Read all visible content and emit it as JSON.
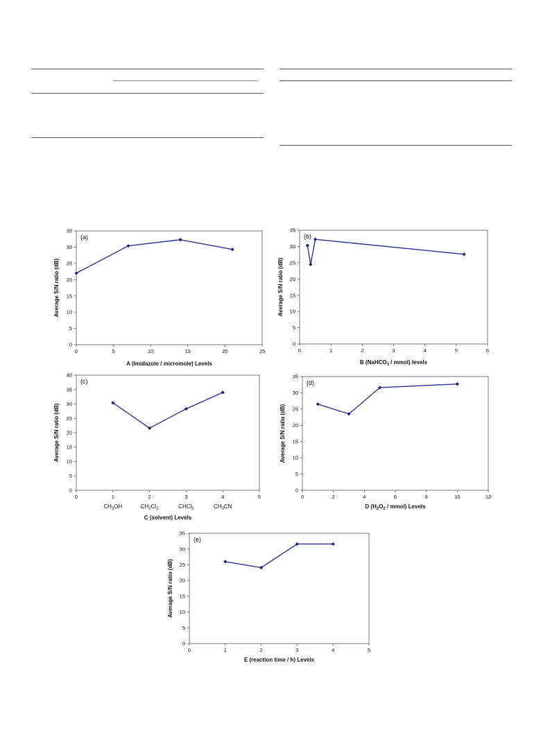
{
  "chart_data": [
    {
      "type": "line",
      "panel_label": "(a)",
      "xlabel": "A (Imidazole / micromole) Levels",
      "ylabel": "Average S/N ratio (dB)",
      "xlim": [
        0,
        25
      ],
      "ylim": [
        0,
        35
      ],
      "xticks": [
        "0",
        "5",
        "10",
        "15",
        "20",
        "25"
      ],
      "yticks": [
        "0",
        "5",
        "10",
        "15",
        "20",
        "25",
        "30",
        "35"
      ],
      "series": [
        {
          "x": [
            0,
            7,
            14,
            21
          ],
          "y": [
            22.0,
            30.4,
            32.3,
            29.3
          ]
        }
      ],
      "color": "#2e3192"
    },
    {
      "type": "line",
      "panel_label": "(b)",
      "xlabel": "B (NaHCO3 / mmol) levels",
      "ylabel": "Average S/N ratio (dB)",
      "xlim": [
        0,
        6
      ],
      "ylim": [
        0,
        35
      ],
      "xticks": [
        "0",
        "1",
        "2",
        "3",
        "4",
        "5",
        "6"
      ],
      "yticks": [
        "0",
        "5",
        "10",
        "15",
        "20",
        "25",
        "30",
        "35"
      ],
      "series": [
        {
          "x": [
            0.25,
            0.35,
            0.5,
            5.25
          ],
          "y": [
            30.3,
            24.5,
            32.2,
            27.6
          ]
        }
      ],
      "color": "#2e3192"
    },
    {
      "type": "line",
      "panel_label": "(c)",
      "xlabel": "C (solvent) Levels",
      "ylabel": "Average S/N ratio (dB)",
      "xlim": [
        0,
        5
      ],
      "ylim": [
        0,
        40
      ],
      "xticks": [
        "0",
        "1",
        "2",
        "3",
        "4",
        "5"
      ],
      "yticks": [
        "0",
        "5",
        "10",
        "15",
        "20",
        "25",
        "30",
        "35",
        "40"
      ],
      "categories": [
        "CH3OH",
        "CH2Cl2",
        "CHCl3",
        "CH3CN"
      ],
      "series": [
        {
          "x": [
            1,
            2,
            3,
            4
          ],
          "y": [
            30.4,
            21.6,
            28.3,
            34.0
          ]
        }
      ],
      "color": "#2e3192"
    },
    {
      "type": "line",
      "panel_label": "(d)",
      "xlabel": "D (H2O2 / mmol) Levels",
      "ylabel": "Average S/N ratio (dB)",
      "xlim": [
        0,
        12
      ],
      "ylim": [
        0,
        35
      ],
      "xticks": [
        "0",
        "2",
        "4",
        "6",
        "8",
        "10",
        "12"
      ],
      "yticks": [
        "0",
        "5",
        "10",
        "15",
        "20",
        "25",
        "30",
        "35"
      ],
      "series": [
        {
          "x": [
            1,
            3,
            5,
            10
          ],
          "y": [
            26.5,
            23.5,
            31.6,
            32.7
          ]
        }
      ],
      "color": "#2e3192"
    },
    {
      "type": "line",
      "panel_label": "(e)",
      "xlabel": "E (reaction time / h) Levels",
      "ylabel": "Average S/N ratio (dB)",
      "xlim": [
        0,
        5
      ],
      "ylim": [
        0,
        35
      ],
      "xticks": [
        "0",
        "1",
        "2",
        "3",
        "4",
        "5"
      ],
      "yticks": [
        "0",
        "5",
        "10",
        "15",
        "20",
        "25",
        "30",
        "35"
      ],
      "series": [
        {
          "x": [
            1,
            2,
            3,
            4
          ],
          "y": [
            26.0,
            24.1,
            31.6,
            31.6
          ]
        }
      ],
      "color": "#2e3192"
    }
  ]
}
